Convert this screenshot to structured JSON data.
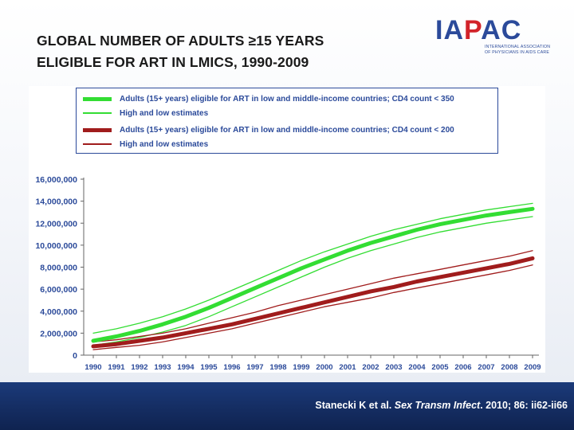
{
  "slide": {
    "title_line1": "GLOBAL NUMBER OF ADULTS ≥15 YEARS",
    "title_line2": "ELIGIBLE FOR ART IN LMICS, 1990-2009",
    "logo": {
      "word_a": "IA",
      "word_b": "P",
      "word_c": "AC",
      "sub_line1": "INTERNATIONAL ASSOCIATION",
      "sub_line2": "OF PHYSICIANS IN AIDS CARE"
    },
    "citation": {
      "authors": "Stanecki K et al. ",
      "journal": "Sex Transm Infect",
      "rest": ". 2010; 86: ii62-ii66"
    },
    "colors": {
      "footer": "#1b3a7a",
      "logo_blue": "#2b4a9a",
      "logo_red": "#d2232a"
    }
  },
  "chart_data": {
    "type": "line",
    "title": "",
    "xlabel": "",
    "ylabel": "",
    "x": [
      1990,
      1991,
      1992,
      1993,
      1994,
      1995,
      1996,
      1997,
      1998,
      1999,
      2000,
      2001,
      2002,
      2003,
      2004,
      2005,
      2006,
      2007,
      2008,
      2009
    ],
    "ylim": [
      0,
      16000000
    ],
    "y_ticks": [
      "0",
      "2,000,000",
      "4,000,000",
      "6,000,000",
      "8,000,000",
      "10,000,000",
      "12,000,000",
      "14,000,000",
      "16,000,000"
    ],
    "x_ticks": [
      "1990",
      "1991",
      "1992",
      "1993",
      "1994",
      "1995",
      "1996",
      "1997",
      "1998",
      "1999",
      "2000",
      "2001",
      "2002",
      "2003",
      "2004",
      "2005",
      "2006",
      "2007",
      "2008",
      "2009"
    ],
    "legend": [
      "Adults (15+ years) eligible for ART in low and middle-income countries; CD4 count < 350",
      "High and low estimates",
      "Adults (15+ years) eligible for ART in low and middle-income countries; CD4 count < 200",
      "High and low estimates"
    ],
    "series": [
      {
        "name": "CD4 < 350",
        "color": "#33dd33",
        "width": 5,
        "values": [
          1300000,
          1700000,
          2200000,
          2800000,
          3500000,
          4300000,
          5200000,
          6100000,
          7000000,
          7900000,
          8700000,
          9500000,
          10200000,
          10800000,
          11400000,
          11900000,
          12300000,
          12700000,
          13000000,
          13300000
        ]
      },
      {
        "name": "CD4 < 350 high estimate",
        "color": "#33dd33",
        "width": 1.3,
        "values": [
          2000000,
          2400000,
          2900000,
          3500000,
          4200000,
          5000000,
          5900000,
          6800000,
          7700000,
          8600000,
          9400000,
          10100000,
          10800000,
          11400000,
          11900000,
          12400000,
          12800000,
          13200000,
          13500000,
          13800000
        ]
      },
      {
        "name": "CD4 < 350 low estimate",
        "color": "#33dd33",
        "width": 1.3,
        "values": [
          900000,
          1200000,
          1600000,
          2100000,
          2700000,
          3500000,
          4400000,
          5300000,
          6200000,
          7100000,
          8000000,
          8800000,
          9500000,
          10100000,
          10700000,
          11200000,
          11600000,
          12000000,
          12300000,
          12600000
        ]
      },
      {
        "name": "CD4 < 200",
        "color": "#a01c1c",
        "width": 5,
        "values": [
          800000,
          1000000,
          1300000,
          1600000,
          2000000,
          2400000,
          2800000,
          3300000,
          3800000,
          4300000,
          4800000,
          5300000,
          5800000,
          6200000,
          6700000,
          7100000,
          7500000,
          7900000,
          8300000,
          8800000
        ]
      },
      {
        "name": "CD4 < 200 high estimate",
        "color": "#a01c1c",
        "width": 1.3,
        "values": [
          1200000,
          1400000,
          1700000,
          2000000,
          2400000,
          2900000,
          3400000,
          3900000,
          4500000,
          5000000,
          5500000,
          6000000,
          6500000,
          7000000,
          7400000,
          7800000,
          8200000,
          8600000,
          9000000,
          9500000
        ]
      },
      {
        "name": "CD4 < 200 low estimate",
        "color": "#a01c1c",
        "width": 1.3,
        "values": [
          500000,
          700000,
          900000,
          1200000,
          1600000,
          2000000,
          2400000,
          2900000,
          3400000,
          3900000,
          4400000,
          4800000,
          5200000,
          5700000,
          6100000,
          6500000,
          6900000,
          7300000,
          7700000,
          8200000
        ]
      }
    ]
  }
}
